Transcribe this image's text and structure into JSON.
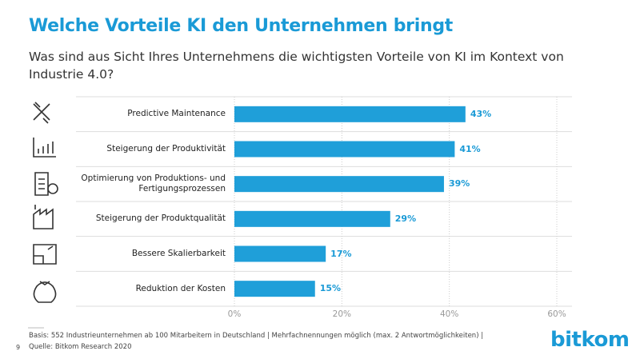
{
  "chart_data": {
    "type": "bar",
    "orientation": "horizontal",
    "title": "Welche Vorteile KI den Unternehmen bringt",
    "subtitle": "Was sind aus Sicht Ihres Unternehmens die wichtigsten Vorteile von KI im Kontext von Industrie 4.0?",
    "categories": [
      "Predictive Maintenance",
      "Steigerung der Produktivität",
      "Optimierung von Produktions- und\nFertigungsprozessen",
      "Steigerung der Produktqualität",
      "Bessere Skalierbarkeit",
      "Reduktion der Kosten"
    ],
    "values": [
      43,
      41,
      39,
      29,
      17,
      15
    ],
    "value_labels": [
      "43%",
      "41%",
      "39%",
      "29%",
      "17%",
      "15%"
    ],
    "color": "#1f9fd9",
    "xlim": [
      0,
      60
    ],
    "xticks": [
      {
        "value": 0,
        "label": "0%"
      },
      {
        "value": 20,
        "label": "20%"
      },
      {
        "value": 40,
        "label": "40%"
      },
      {
        "value": 60,
        "label": "60%"
      }
    ],
    "grid": true,
    "note": "Basis: 552 Industrieunternehmen ab 100 Mitarbeitern in Deutschland | Mehrfachnennungen möglich (max. 2 Antwortmöglichkeiten) |",
    "source": "Quelle: Bitkom Research 2020",
    "page_number": "9",
    "logo": "bitkom"
  }
}
